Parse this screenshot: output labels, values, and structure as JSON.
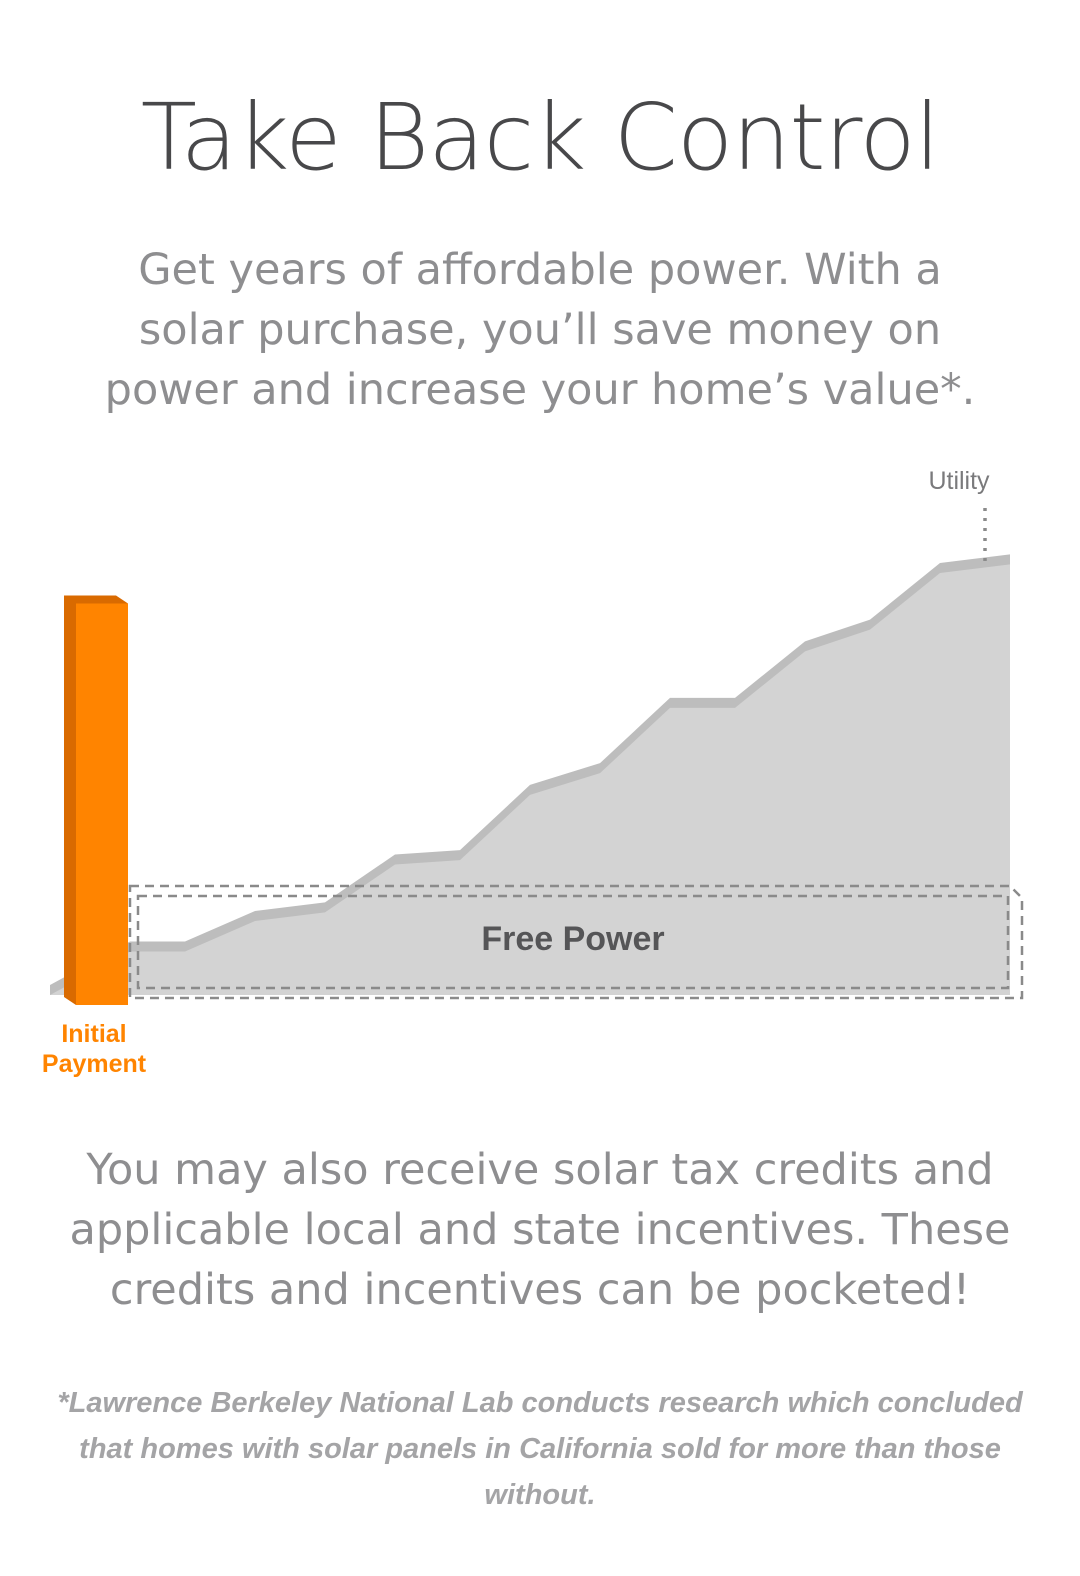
{
  "header": {
    "title": "Take Back Control",
    "intro": "Get years of affordable power. With a solar purchase, you’ll save money on power and increase your home’s value*."
  },
  "chart_data": {
    "type": "area",
    "title": "",
    "xlabel": "",
    "ylabel": "",
    "grid": false,
    "series": [
      {
        "name": "Utility",
        "kind": "area",
        "color": "#d3d3d3",
        "values": [
          0,
          1.0,
          1.0,
          1.7,
          1.9,
          3.0,
          3.1,
          4.6,
          5.1,
          6.6,
          6.6,
          7.9,
          8.4,
          9.7,
          9.9
        ]
      },
      {
        "name": "Initial Payment",
        "kind": "bar",
        "color": "#ff8400",
        "value": 9.0
      }
    ],
    "annotations": {
      "band_label": "Free Power"
    }
  },
  "outro": "You may also receive solar tax credits and applicable local and state incentives. These credits and incentives can be pocketed!",
  "footnote": "*Lawrence Berkeley National Lab conducts research which concluded that homes with solar panels in California sold for more than those without.",
  "colors": {
    "title": "#48484a",
    "body_text": "#8e8e90",
    "footnote": "#a4a4a6",
    "utility_fill": "#d3d3d3",
    "utility_edge": "#bdbdbd",
    "initial_payment": "#ff8400",
    "initial_payment_shade": "#d96a00",
    "band_border": "#8a8a8a",
    "band_label": "#555557",
    "utility_label": "#7a7a7c"
  }
}
